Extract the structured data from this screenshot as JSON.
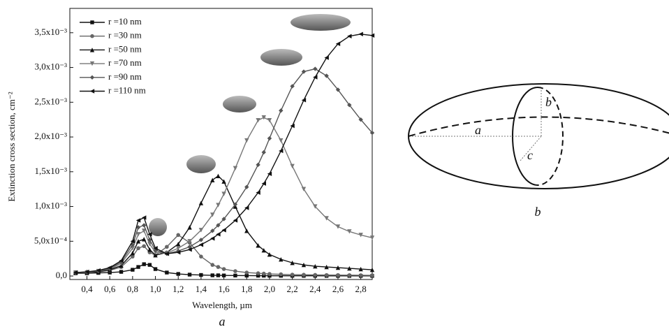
{
  "chart_data": {
    "type": "line",
    "x_label": "Wavelength, µm",
    "y_label": "Extinction cross section, cm⁻²",
    "x": [
      0.3,
      0.4,
      0.5,
      0.6,
      0.7,
      0.8,
      0.85,
      0.9,
      0.95,
      1.0,
      1.1,
      1.2,
      1.3,
      1.4,
      1.5,
      1.55,
      1.6,
      1.7,
      1.8,
      1.9,
      1.95,
      2.0,
      2.1,
      2.2,
      2.3,
      2.4,
      2.5,
      2.6,
      2.7,
      2.8,
      2.9
    ],
    "series": [
      {
        "name": "r =10 nm",
        "color": "#111111",
        "marker": "square",
        "values": [
          4e-05,
          4e-05,
          4.5e-05,
          5e-05,
          6e-05,
          9e-05,
          0.00013,
          0.00017,
          0.00016,
          0.0001,
          5e-05,
          3e-05,
          2e-05,
          1.5e-05,
          1e-05,
          1e-05,
          8e-06,
          7e-06,
          6e-06,
          5e-06,
          5e-06,
          4e-06,
          4e-06,
          3e-06,
          3e-06,
          3e-06,
          2e-06,
          2e-06,
          2e-06,
          2e-06,
          2e-06
        ]
      },
      {
        "name": "r =30 nm",
        "color": "#666666",
        "marker": "circle",
        "values": [
          5e-05,
          5e-05,
          6e-05,
          8e-05,
          0.00013,
          0.00028,
          0.0004,
          0.00043,
          0.00034,
          0.0003,
          0.00042,
          0.00059,
          0.00048,
          0.00028,
          0.00016,
          0.00013,
          0.0001,
          7e-05,
          5e-05,
          4e-05,
          3.5e-05,
          3e-05,
          2.5e-05,
          2e-05,
          1.8e-05,
          1.6e-05,
          1.4e-05,
          1.3e-05,
          1.2e-05,
          1.1e-05,
          1e-05
        ]
      },
      {
        "name": "r =50 nm",
        "color": "#111111",
        "marker": "triangle-up",
        "values": [
          5e-05,
          5e-05,
          6e-05,
          9e-05,
          0.00015,
          0.00033,
          0.0005,
          0.00053,
          0.00038,
          0.0003,
          0.00034,
          0.00046,
          0.0007,
          0.00105,
          0.00138,
          0.00144,
          0.00136,
          0.001,
          0.00065,
          0.00044,
          0.00037,
          0.00031,
          0.00024,
          0.00019,
          0.00016,
          0.00014,
          0.00013,
          0.00012,
          0.00011,
          0.0001,
          9e-05
        ]
      },
      {
        "name": "r =70 nm",
        "color": "#777777",
        "marker": "triangle-down",
        "values": [
          5e-05,
          5e-05,
          7e-05,
          0.0001,
          0.00018,
          0.0004,
          0.0006,
          0.00065,
          0.00046,
          0.00034,
          0.00033,
          0.0004,
          0.0005,
          0.00066,
          0.00088,
          0.00102,
          0.00118,
          0.00155,
          0.00195,
          0.00224,
          0.00228,
          0.00224,
          0.00195,
          0.00158,
          0.00125,
          0.001,
          0.00083,
          0.00071,
          0.00064,
          0.00059,
          0.00055
        ]
      },
      {
        "name": "r =90 nm",
        "color": "#555555",
        "marker": "diamond",
        "values": [
          5e-05,
          6e-05,
          7e-05,
          0.00011,
          0.0002,
          0.00045,
          0.0007,
          0.00073,
          0.00052,
          0.00037,
          0.00032,
          0.00036,
          0.00042,
          0.00052,
          0.00065,
          0.00073,
          0.00082,
          0.00103,
          0.00128,
          0.0016,
          0.00178,
          0.00198,
          0.00238,
          0.00273,
          0.00294,
          0.00298,
          0.00288,
          0.00268,
          0.00246,
          0.00225,
          0.00206
        ]
      },
      {
        "name": "r =110 nm",
        "color": "#111111",
        "marker": "triangle-left",
        "values": [
          5e-05,
          6e-05,
          8e-05,
          0.00012,
          0.00022,
          0.0005,
          0.0008,
          0.00084,
          0.0006,
          0.0004,
          0.00032,
          0.00034,
          0.00038,
          0.00045,
          0.00054,
          0.0006,
          0.00066,
          0.0008,
          0.00098,
          0.0012,
          0.00133,
          0.00147,
          0.0018,
          0.00216,
          0.00253,
          0.00286,
          0.00314,
          0.00334,
          0.00345,
          0.00348,
          0.00346
        ]
      }
    ],
    "xlim": [
      0.25,
      2.9
    ],
    "ylim": [
      -5e-05,
      0.00385
    ],
    "xticks": [
      {
        "value": 0.4,
        "label": "0,4"
      },
      {
        "value": 0.6,
        "label": "0,6"
      },
      {
        "value": 0.8,
        "label": "0,8"
      },
      {
        "value": 1.0,
        "label": "1,0"
      },
      {
        "value": 1.2,
        "label": "1,2"
      },
      {
        "value": 1.4,
        "label": "1,4"
      },
      {
        "value": 1.6,
        "label": "1,6"
      },
      {
        "value": 1.8,
        "label": "1,8"
      },
      {
        "value": 2.0,
        "label": "2,0"
      },
      {
        "value": 2.2,
        "label": "2,2"
      },
      {
        "value": 2.4,
        "label": "2,4"
      },
      {
        "value": 2.6,
        "label": "2,6"
      },
      {
        "value": 2.8,
        "label": "2,8"
      }
    ],
    "yticks": [
      {
        "value": 0,
        "label": "0,0"
      },
      {
        "value": 0.0005,
        "label": "5,0x10⁻⁴"
      },
      {
        "value": 0.001,
        "label": "1,0x10⁻³"
      },
      {
        "value": 0.0015,
        "label": "1,5x10⁻³"
      },
      {
        "value": 0.002,
        "label": "2,0x10⁻³"
      },
      {
        "value": 0.0025,
        "label": "2,5x10⁻³"
      },
      {
        "value": 0.003,
        "label": "3,0x10⁻³"
      },
      {
        "value": 0.0035,
        "label": "3,5x10⁻³"
      }
    ],
    "grid": false,
    "legend": "top-left"
  },
  "panels": [
    "a",
    "b"
  ],
  "diagram": {
    "axis_labels": [
      "a",
      "b",
      "c"
    ]
  }
}
